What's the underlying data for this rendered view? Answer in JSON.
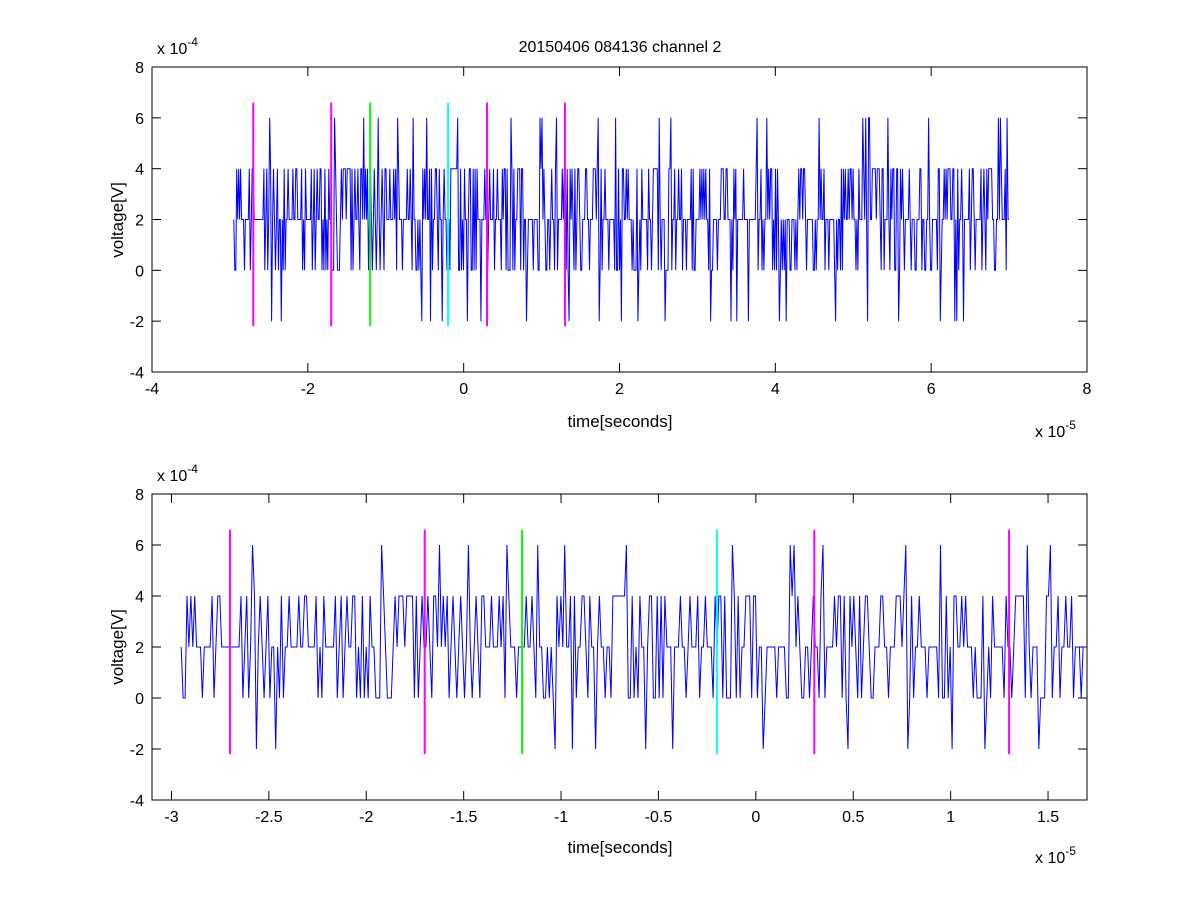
{
  "chart_data": [
    {
      "type": "line",
      "title": "20150406 084136 channel 2",
      "xlabel": "time[seconds]",
      "ylabel": "voltage[V]",
      "x_exponent_label": "x 10",
      "x_exponent_power": "-5",
      "y_exponent_label": "x 10",
      "y_exponent_power": "-4",
      "xlim": [
        -4,
        8
      ],
      "ylim": [
        -4,
        8
      ],
      "xticks": [
        -4,
        -2,
        0,
        2,
        4,
        6,
        8
      ],
      "xtick_labels": [
        "-4",
        "-2",
        "0",
        "2",
        "4",
        "6",
        "8"
      ],
      "yticks": [
        -4,
        -2,
        0,
        2,
        4,
        6,
        8
      ],
      "ytick_labels": [
        "-4",
        "-2",
        "0",
        "2",
        "4",
        "6",
        "8"
      ],
      "grid": false,
      "signal": {
        "color": "#0000ff",
        "x_start": -2.95,
        "x_end": 7.0,
        "approx_sample_count": 800,
        "dominant_levels": [
          0,
          2,
          4
        ],
        "occasional_levels": [
          -2,
          6
        ]
      },
      "markers": [
        {
          "x": -2.7,
          "color": "#ff00ff",
          "y_range": [
            -2.2,
            6.6
          ]
        },
        {
          "x": -1.7,
          "color": "#ff00ff",
          "y_range": [
            -2.2,
            6.6
          ]
        },
        {
          "x": -1.2,
          "color": "#00ff00",
          "y_range": [
            -2.2,
            6.6
          ]
        },
        {
          "x": -0.2,
          "color": "#00ffff",
          "y_range": [
            -2.2,
            6.6
          ]
        },
        {
          "x": 0.3,
          "color": "#ff00ff",
          "y_range": [
            -2.2,
            6.6
          ]
        },
        {
          "x": 1.3,
          "color": "#ff00ff",
          "y_range": [
            -2.2,
            6.6
          ]
        }
      ]
    },
    {
      "type": "line",
      "title": "",
      "xlabel": "time[seconds]",
      "ylabel": "voltage[V]",
      "x_exponent_label": "x 10",
      "x_exponent_power": "-5",
      "y_exponent_label": "x 10",
      "y_exponent_power": "-4",
      "xlim": [
        -3.1,
        1.7
      ],
      "ylim": [
        -4,
        8
      ],
      "xticks": [
        -3,
        -2.5,
        -2,
        -1.5,
        -1,
        -0.5,
        0,
        0.5,
        1,
        1.5
      ],
      "xtick_labels": [
        "-3",
        "-2.5",
        "-2",
        "-1.5",
        "-1",
        "-0.5",
        "0",
        "0.5",
        "1",
        "1.5"
      ],
      "yticks": [
        -4,
        -2,
        0,
        2,
        4,
        6,
        8
      ],
      "ytick_labels": [
        "-4",
        "-2",
        "0",
        "2",
        "4",
        "6",
        "8"
      ],
      "grid": false,
      "signal": {
        "color": "#0000ff",
        "x_start": -2.95,
        "x_end": 1.7,
        "approx_sample_count": 470,
        "dominant_levels": [
          0,
          2,
          4
        ],
        "occasional_levels": [
          -2,
          6
        ]
      },
      "markers": [
        {
          "x": -2.7,
          "color": "#ff00ff",
          "y_range": [
            -2.2,
            6.6
          ]
        },
        {
          "x": -1.7,
          "color": "#ff00ff",
          "y_range": [
            -2.2,
            6.6
          ]
        },
        {
          "x": -1.2,
          "color": "#00ff00",
          "y_range": [
            -2.2,
            6.6
          ]
        },
        {
          "x": -0.2,
          "color": "#00ffff",
          "y_range": [
            -2.2,
            6.6
          ]
        },
        {
          "x": 0.3,
          "color": "#ff00ff",
          "y_range": [
            -2.2,
            6.6
          ]
        },
        {
          "x": 1.3,
          "color": "#ff00ff",
          "y_range": [
            -2.2,
            6.6
          ]
        }
      ]
    }
  ]
}
